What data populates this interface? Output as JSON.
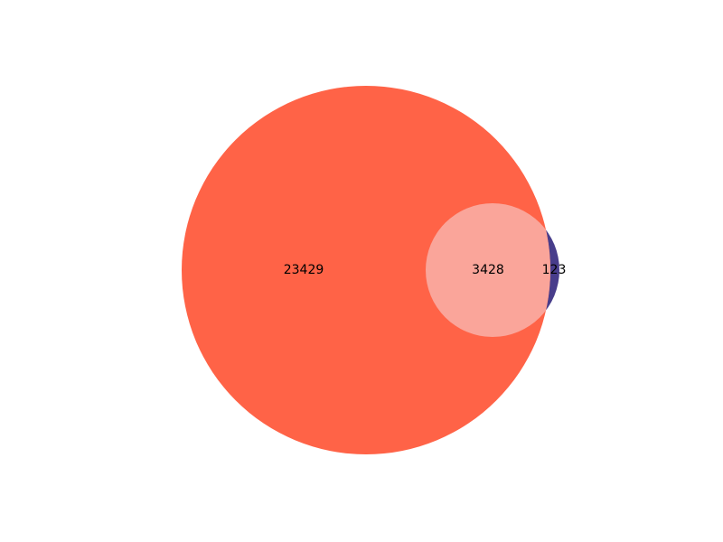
{
  "chart_data": {
    "type": "venn",
    "sets": [
      {
        "color": "#ff6347"
      },
      {
        "color": "#483d8b"
      }
    ],
    "regions": {
      "only_a": 23429,
      "a_and_b": 3428,
      "only_b": 123
    },
    "labels": {
      "only_a": "23429",
      "a_and_b": "3428",
      "only_b": "123"
    },
    "overlap_color": "#faa59a"
  }
}
